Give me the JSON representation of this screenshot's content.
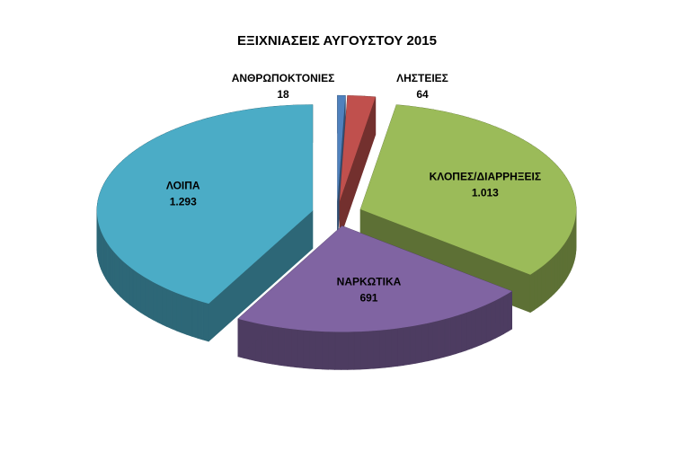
{
  "chart_data": {
    "type": "pie",
    "title": "ΕΞΙΧΝΙΑΣΕΙΣ ΑΥΓΟΥΣΤΟΥ 2015",
    "categories": [
      "ΑΝΘΡΩΠΟΚΤΟΝΙΕΣ",
      "ΛΗΣΤΕΙΕΣ",
      "ΚΛΟΠΕΣ/ΔΙΑΡΡΗΞΕΙΣ",
      "ΝΑΡΚΩΤΙΚΑ",
      "ΛΟΙΠΑ"
    ],
    "values": [
      18,
      64,
      1013,
      691,
      1293
    ],
    "value_labels": [
      "18",
      "64",
      "1.013",
      "691",
      "1.293"
    ],
    "colors": [
      "#4f81bd",
      "#c0504d",
      "#9bbb59",
      "#8064a2",
      "#4bacc6"
    ]
  }
}
